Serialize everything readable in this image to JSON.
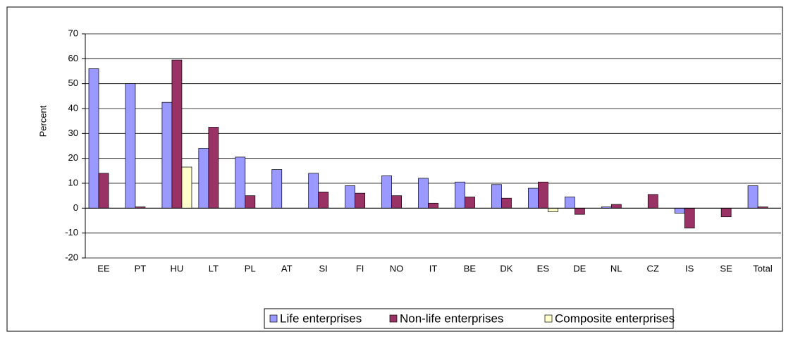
{
  "chart_data": {
    "type": "bar",
    "y_label": "Percent",
    "categories": [
      "EE",
      "PT",
      "HU",
      "LT",
      "PL",
      "AT",
      "SI",
      "FI",
      "NO",
      "IT",
      "BE",
      "DK",
      "ES",
      "DE",
      "NL",
      "CZ",
      "IS",
      "SE",
      "Total"
    ],
    "series": [
      {
        "name": "Life enterprises",
        "color": "#9999ff",
        "values": [
          56,
          50,
          42.5,
          24,
          20.5,
          15.5,
          14,
          9,
          13,
          12,
          10.5,
          9.5,
          8,
          4.5,
          0.5,
          null,
          -2,
          null,
          9
        ]
      },
      {
        "name": "Non-life enterprises",
        "color": "#993366",
        "values": [
          14,
          0.5,
          59.5,
          32.5,
          5,
          null,
          6.5,
          6,
          5,
          2,
          4.5,
          4,
          10.5,
          -2.5,
          1.5,
          5.5,
          -8,
          -3.5,
          0.5
        ]
      },
      {
        "name": "Composite enterprises",
        "color": "#ffffcc",
        "values": [
          null,
          null,
          16.5,
          null,
          null,
          null,
          null,
          null,
          null,
          null,
          null,
          null,
          -1.5,
          null,
          null,
          null,
          null,
          null,
          null
        ]
      }
    ],
    "ylim": [
      -20,
      70
    ],
    "yticks": [
      -20,
      -10,
      0,
      10,
      20,
      30,
      40,
      50,
      60,
      70
    ],
    "grid": true,
    "legend": "bottom"
  }
}
